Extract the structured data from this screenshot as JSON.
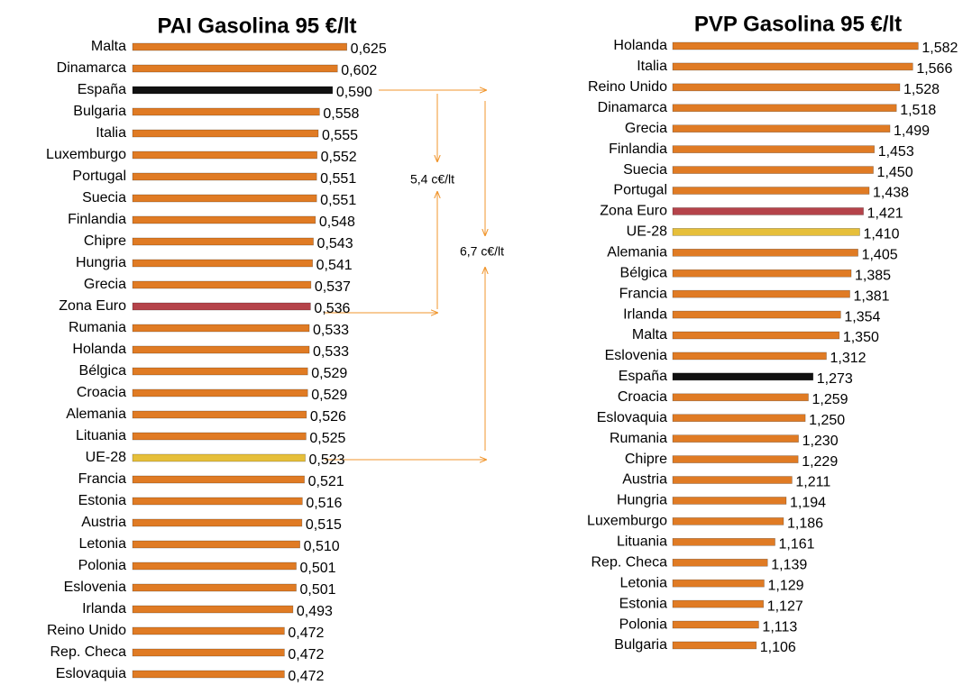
{
  "chart_data": [
    {
      "type": "bar",
      "title": "PAI Gasolina 95 €/lt",
      "categories": [
        "Malta",
        "Dinamarca",
        "España",
        "Bulgaria",
        "Italia",
        "Luxemburgo",
        "Portugal",
        "Suecia",
        "Finlandia",
        "Chipre",
        "Hungria",
        "Grecia",
        "Zona Euro",
        "Rumania",
        "Holanda",
        "Bélgica",
        "Croacia",
        "Alemania",
        "Lituania",
        "UE-28",
        "Francia",
        "Estonia",
        "Austria",
        "Letonia",
        "Polonia",
        "Eslovenia",
        "Irlanda",
        "Reino Unido",
        "Rep. Checa",
        "Eslovaquia"
      ],
      "values": [
        0.625,
        0.602,
        0.59,
        0.558,
        0.555,
        0.552,
        0.551,
        0.551,
        0.548,
        0.543,
        0.541,
        0.537,
        0.536,
        0.533,
        0.533,
        0.529,
        0.529,
        0.526,
        0.525,
        0.523,
        0.521,
        0.516,
        0.515,
        0.51,
        0.501,
        0.501,
        0.493,
        0.472,
        0.472,
        0.472
      ],
      "value_labels": [
        "0,625",
        "0,602",
        "0,590",
        "0,558",
        "0,555",
        "0,552",
        "0,551",
        "0,551",
        "0,548",
        "0,543",
        "0,541",
        "0,537",
        "0,536",
        "0,533",
        "0,533",
        "0,529",
        "0,529",
        "0,526",
        "0,525",
        "0,523",
        "0,521",
        "0,516",
        "0,515",
        "0,510",
        "0,501",
        "0,501",
        "0,493",
        "0,472",
        "0,472",
        "0,472"
      ],
      "colors": [
        "#e07b24",
        "#e07b24",
        "#111111",
        "#e07b24",
        "#e07b24",
        "#e07b24",
        "#e07b24",
        "#e07b24",
        "#e07b24",
        "#e07b24",
        "#e07b24",
        "#e07b24",
        "#b5434a",
        "#e07b24",
        "#e07b24",
        "#e07b24",
        "#e07b24",
        "#e07b24",
        "#e07b24",
        "#e6bf3a",
        "#e07b24",
        "#e07b24",
        "#e07b24",
        "#e07b24",
        "#e07b24",
        "#e07b24",
        "#e07b24",
        "#e07b24",
        "#e07b24",
        "#e07b24"
      ],
      "xlim": [
        0.1,
        0.65
      ]
    },
    {
      "type": "bar",
      "title": "PVP Gasolina 95 €/lt",
      "categories": [
        "Holanda",
        "Italia",
        "Reino Unido",
        "Dinamarca",
        "Grecia",
        "Finlandia",
        "Suecia",
        "Portugal",
        "Zona Euro",
        "UE-28",
        "Alemania",
        "Bélgica",
        "Francia",
        "Irlanda",
        "Malta",
        "Eslovenia",
        "España",
        "Croacia",
        "Eslovaquia",
        "Rumania",
        "Chipre",
        "Austria",
        "Hungria",
        "Luxemburgo",
        "Lituania",
        "Rep. Checa",
        "Letonia",
        "Estonia",
        "Polonia",
        "Bulgaria"
      ],
      "values": [
        1.582,
        1.566,
        1.528,
        1.518,
        1.499,
        1.453,
        1.45,
        1.438,
        1.421,
        1.41,
        1.405,
        1.385,
        1.381,
        1.354,
        1.35,
        1.312,
        1.273,
        1.259,
        1.25,
        1.23,
        1.229,
        1.211,
        1.194,
        1.186,
        1.161,
        1.139,
        1.129,
        1.127,
        1.113,
        1.106
      ],
      "value_labels": [
        "1,582",
        "1,566",
        "1,528",
        "1,518",
        "1,499",
        "1,453",
        "1,450",
        "1,438",
        "1,421",
        "1,410",
        "1,405",
        "1,385",
        "1,381",
        "1,354",
        "1,350",
        "1,312",
        "1,273",
        "1,259",
        "1,250",
        "1,230",
        "1,229",
        "1,211",
        "1,194",
        "1,186",
        "1,161",
        "1,139",
        "1,129",
        "1,127",
        "1,113",
        "1,106"
      ],
      "colors": [
        "#e07b24",
        "#e07b24",
        "#e07b24",
        "#e07b24",
        "#e07b24",
        "#e07b24",
        "#e07b24",
        "#e07b24",
        "#b5434a",
        "#e6bf3a",
        "#e07b24",
        "#e07b24",
        "#e07b24",
        "#e07b24",
        "#e07b24",
        "#e07b24",
        "#111111",
        "#e07b24",
        "#e07b24",
        "#e07b24",
        "#e07b24",
        "#e07b24",
        "#e07b24",
        "#e07b24",
        "#e07b24",
        "#e07b24",
        "#e07b24",
        "#e07b24",
        "#e07b24",
        "#e07b24"
      ],
      "xlim": [
        0.86,
        1.65
      ]
    }
  ],
  "annotations": [
    "5,4 c€/lt",
    "6,7 c€/lt"
  ]
}
